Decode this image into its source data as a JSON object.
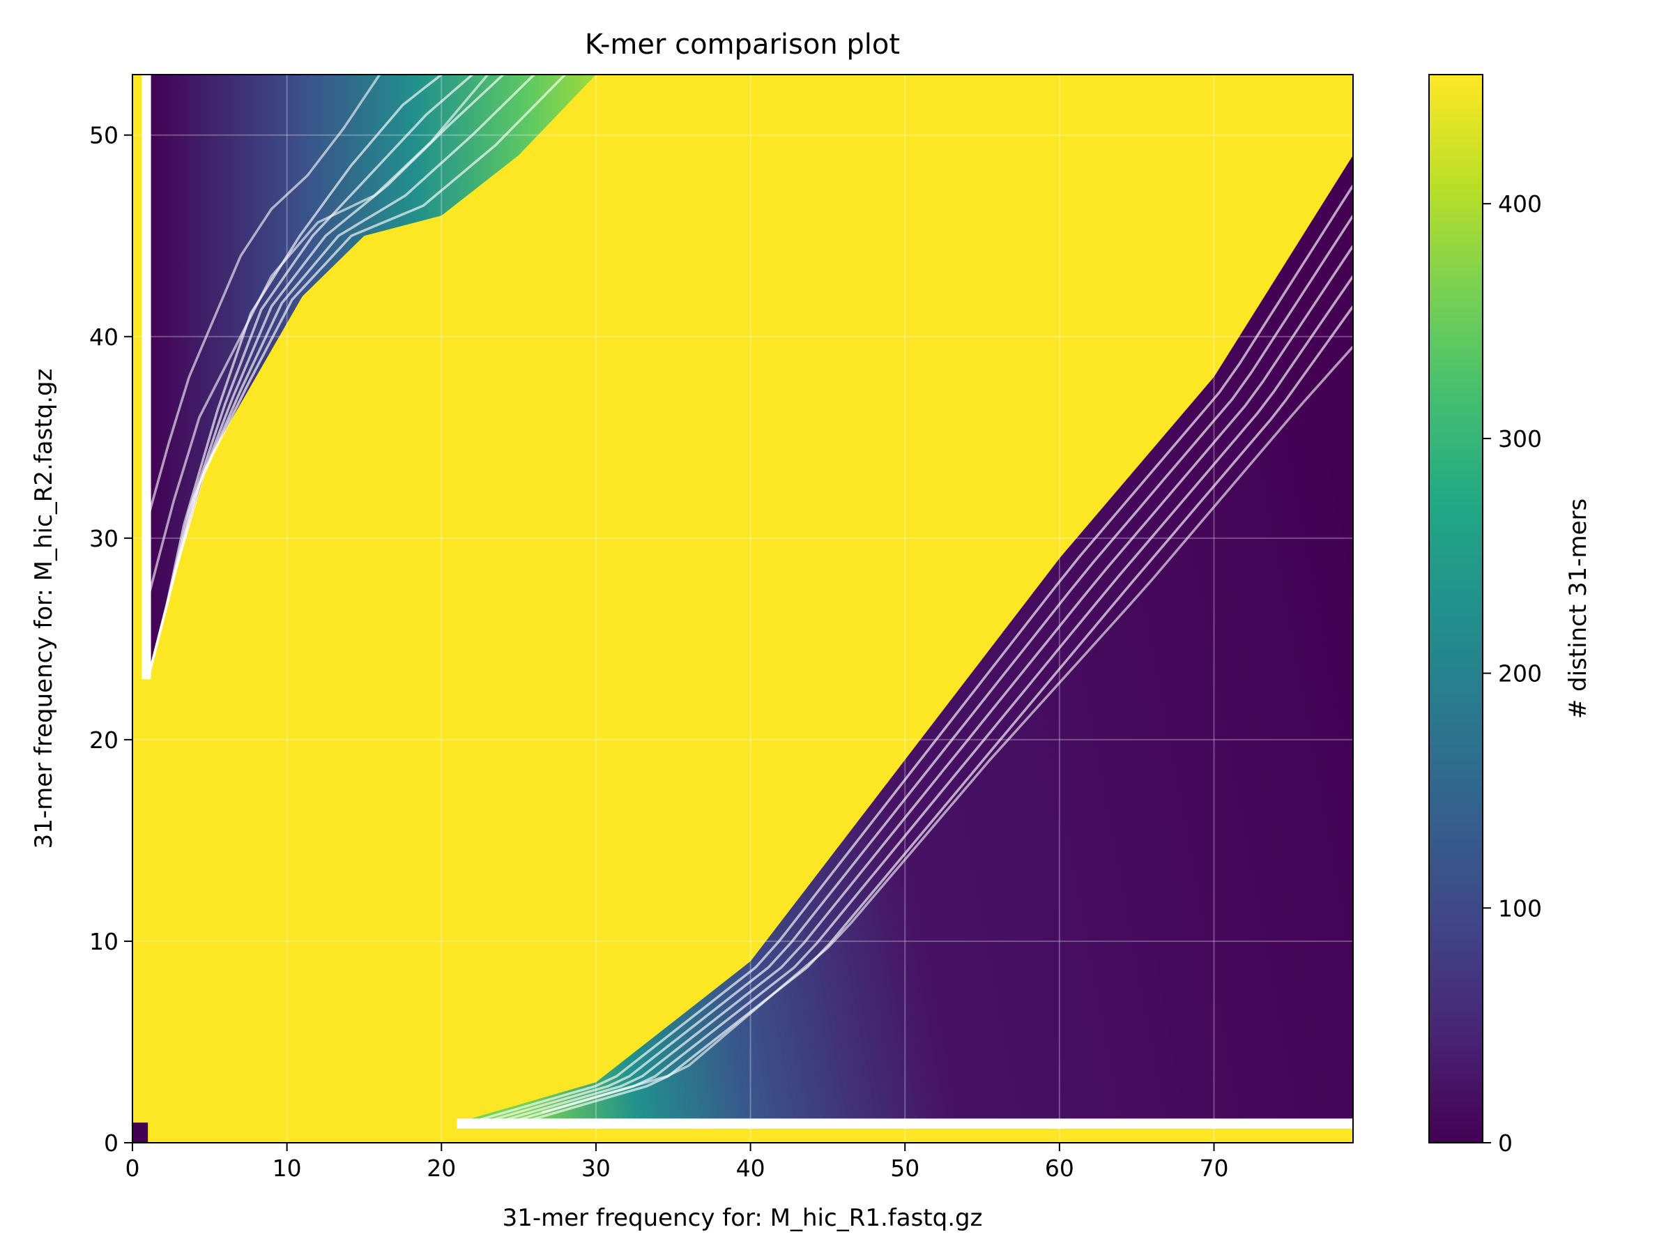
{
  "chart_data": {
    "type": "heatmap",
    "title": "K-mer comparison plot",
    "xlabel": "31-mer frequency for: M_hic_R1.fastq.gz",
    "ylabel": "31-mer frequency for: M_hic_R2.fastq.gz",
    "xlim": [
      0,
      79
    ],
    "ylim": [
      0,
      53
    ],
    "xticks": [
      0,
      10,
      20,
      30,
      40,
      50,
      60,
      70
    ],
    "yticks": [
      0,
      10,
      20,
      30,
      40,
      50
    ],
    "colorbar": {
      "label": "# distinct 31-mers",
      "range": [
        0,
        455
      ],
      "ticks": [
        0,
        100,
        200,
        300,
        400
      ],
      "colormap": "viridis"
    },
    "grid": true,
    "regions": [
      {
        "description": "upper-left low-density band",
        "boundary_low": [
          [
            1,
            23
          ],
          [
            2,
            26
          ],
          [
            3,
            30
          ],
          [
            5,
            36
          ],
          [
            7,
            41
          ],
          [
            10,
            45
          ],
          [
            13,
            49
          ],
          [
            16,
            52
          ],
          [
            18,
            53
          ]
        ],
        "boundary_high": [
          [
            1,
            23
          ],
          [
            3,
            29
          ],
          [
            5,
            34
          ],
          [
            8,
            38
          ],
          [
            11,
            42
          ],
          [
            15,
            45
          ],
          [
            20,
            46
          ],
          [
            25,
            49
          ],
          [
            30,
            53
          ]
        ]
      },
      {
        "description": "lower-right low-density band",
        "boundary_low": [
          [
            21,
            1
          ],
          [
            30,
            3
          ],
          [
            40,
            9
          ],
          [
            50,
            19
          ],
          [
            60,
            29
          ],
          [
            70,
            38
          ],
          [
            79,
            49
          ]
        ],
        "boundary_high": [
          [
            26,
            1
          ],
          [
            35,
            3
          ],
          [
            45,
            9
          ],
          [
            55,
            18
          ],
          [
            65,
            27
          ],
          [
            75,
            36
          ],
          [
            79,
            40
          ]
        ]
      }
    ],
    "saturated_value": 455,
    "background_color": "#fde725"
  }
}
